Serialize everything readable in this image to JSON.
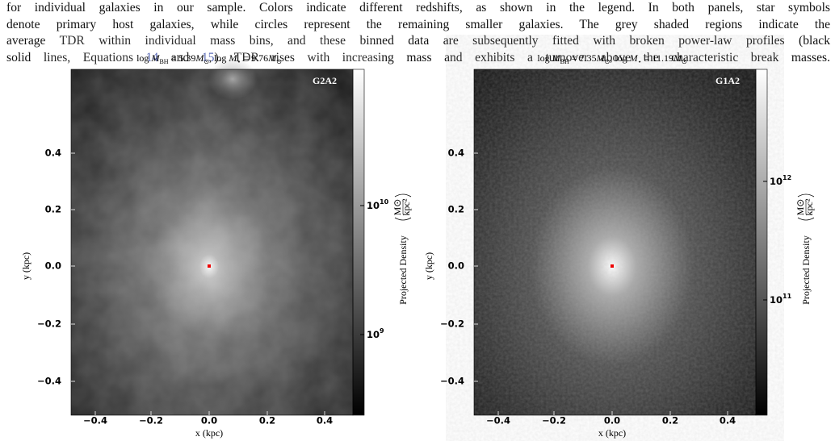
{
  "caption": {
    "lines": [
      "for individual galaxies in our sample. Colors indicate different redshifts, as shown in the legend. In both panels, star symbols",
      "denote primary host galaxies, while circles represent the remaining smaller galaxies. The grey shaded regions indicate the",
      "average TDR within individual mass bins, and these binned data are subsequently fitted with broken power-law profiles (black"
    ],
    "last_line": [
      "solid lines, Equations ",
      "14",
      " and ",
      "15",
      "). TDR rises with increasing mass and exhibits a turnover above the characteristic break masses."
    ]
  },
  "panels": [
    {
      "title": [
        "log ",
        "M",
        "BH",
        " = 5.39",
        "M",
        "⊙",
        ",  log ",
        "M",
        "⋆",
        " = 9.76",
        "M",
        "⊙"
      ],
      "label": "G2A2",
      "yticks": [
        "0.4",
        "0.2",
        "0.0",
        "−0.2",
        "−0.4"
      ],
      "xticks": [
        "−0.4",
        "−0.2",
        "0.0",
        "0.2",
        "0.4"
      ],
      "xlabel": "x  (kpc)",
      "ylabel": "y  (kpc)",
      "colorbar_ticks": [
        {
          "base": "10",
          "exp": "10"
        },
        {
          "base": "10",
          "exp": "9"
        }
      ],
      "colorbar_label": "Projected Density",
      "unit_num": "M⊙",
      "unit_den": "kpc²"
    },
    {
      "title": [
        "log ",
        "M",
        "BH",
        " = 7.35",
        "M",
        "⊙",
        ",  log ",
        "M",
        "⋆",
        " = 11.19",
        "M",
        "⊙"
      ],
      "label": "G1A2",
      "yticks": [
        "0.4",
        "0.2",
        "0.0",
        "−0.2",
        "−0.4"
      ],
      "xticks": [
        "−0.4",
        "−0.2",
        "0.0",
        "0.2",
        "0.4"
      ],
      "xlabel": "x  (kpc)",
      "ylabel": "y  (kpc)",
      "colorbar_ticks": [
        {
          "base": "10",
          "exp": "12"
        },
        {
          "base": "10",
          "exp": "11"
        }
      ],
      "colorbar_label": "Projected Density",
      "unit_num": "M⊙",
      "unit_den": "kpc²"
    }
  ]
}
